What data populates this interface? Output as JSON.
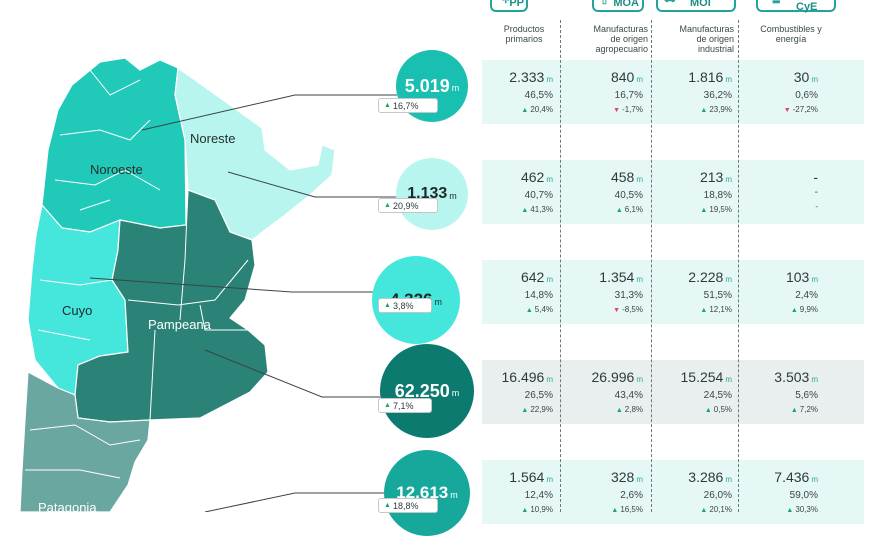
{
  "header": {
    "icons": [
      {
        "abbr": "PP",
        "icon": "plant-icon"
      },
      {
        "abbr": "MOA",
        "icon": "farm-box-icon"
      },
      {
        "abbr": "MOI",
        "icon": "truck-icon"
      },
      {
        "abbr": "CyE",
        "icon": "pump-icon"
      }
    ],
    "columns": [
      [
        "Productos",
        "primarios"
      ],
      [
        "Manufacturas",
        "de origen",
        "agropecuario"
      ],
      [
        "Manufacturas",
        "de origen",
        "industrial"
      ],
      [
        "Combustibles y",
        "energía"
      ]
    ]
  },
  "unit": "m",
  "regions": [
    {
      "name": "Noroeste",
      "total": "5.019",
      "total_change": "16,7%",
      "color": "#19bfb0",
      "text_color": "#ffffff",
      "cells": [
        {
          "value": "2.333",
          "share": "46,5%",
          "change": "20,4%",
          "dir": "up"
        },
        {
          "value": "840",
          "share": "16,7%",
          "change": "-1,7%",
          "dir": "down"
        },
        {
          "value": "1.816",
          "share": "36,2%",
          "change": "23,9%",
          "dir": "up"
        },
        {
          "value": "30",
          "share": "0,6%",
          "change": "-27,2%",
          "dir": "down"
        }
      ]
    },
    {
      "name": "Noreste",
      "total": "1.133",
      "total_change": "20,9%",
      "color": "#b7f5ee",
      "text_color": "#1c2a29",
      "cells": [
        {
          "value": "462",
          "share": "40,7%",
          "change": "41,3%",
          "dir": "up"
        },
        {
          "value": "458",
          "share": "40,5%",
          "change": "6,1%",
          "dir": "up"
        },
        {
          "value": "213",
          "share": "18,8%",
          "change": "19,5%",
          "dir": "up"
        },
        {
          "value": "-",
          "share": "-",
          "change": "-",
          "dir": "none"
        }
      ]
    },
    {
      "name": "Cuyo",
      "total": "4.326",
      "total_change": "3,8%",
      "color": "#45e6dc",
      "text_color": "#1c2a29",
      "cells": [
        {
          "value": "642",
          "share": "14,8%",
          "change": "5,4%",
          "dir": "up"
        },
        {
          "value": "1.354",
          "share": "31,3%",
          "change": "-8,5%",
          "dir": "down"
        },
        {
          "value": "2.228",
          "share": "51,5%",
          "change": "12,1%",
          "dir": "up"
        },
        {
          "value": "103",
          "share": "2,4%",
          "change": "9,9%",
          "dir": "up"
        }
      ]
    },
    {
      "name": "Pampeana",
      "total": "62.250",
      "total_change": "7,1%",
      "color": "#0d7a70",
      "text_color": "#ffffff",
      "cells": [
        {
          "value": "16.496",
          "share": "26,5%",
          "change": "22,9%",
          "dir": "up"
        },
        {
          "value": "26.996",
          "share": "43,4%",
          "change": "2,8%",
          "dir": "up"
        },
        {
          "value": "15.254",
          "share": "24,5%",
          "change": "0,5%",
          "dir": "up"
        },
        {
          "value": "3.503",
          "share": "5,6%",
          "change": "7,2%",
          "dir": "up"
        }
      ]
    },
    {
      "name": "Patagonia",
      "total": "12.613",
      "total_change": "18,8%",
      "color": "#17a89c",
      "text_color": "#ffffff",
      "cells": [
        {
          "value": "1.564",
          "share": "12,4%",
          "change": "10,9%",
          "dir": "up"
        },
        {
          "value": "328",
          "share": "2,6%",
          "change": "16,5%",
          "dir": "up"
        },
        {
          "value": "3.286",
          "share": "26,0%",
          "change": "20,1%",
          "dir": "up"
        },
        {
          "value": "7.436",
          "share": "59,0%",
          "change": "30,3%",
          "dir": "up"
        }
      ]
    }
  ],
  "map_colors": {
    "noroeste": "#21c9b9",
    "noreste": "#b7f5ee",
    "cuyo": "#45e6dc",
    "pampeana": "#2b8378",
    "patagonia": "#6aa7a0",
    "row_band": "#e6f8f6",
    "row_band_pampeana": "#e9eeee"
  }
}
